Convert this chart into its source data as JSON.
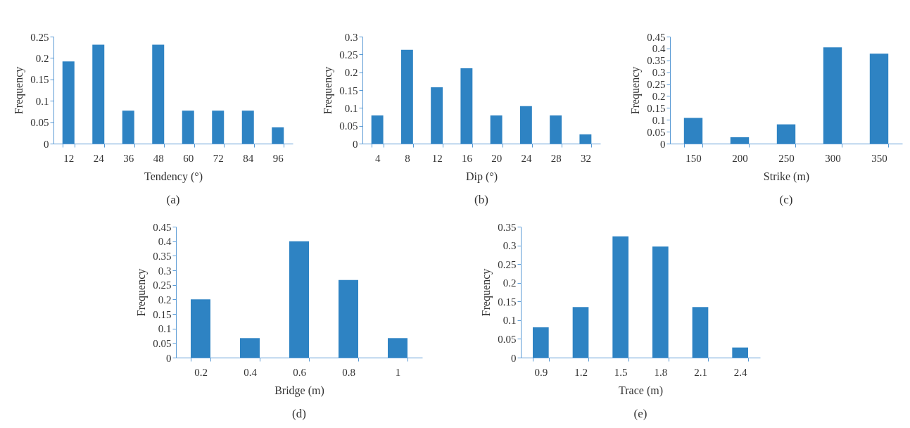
{
  "chart_data": [
    {
      "type": "bar",
      "xlabel": "Tendency (°)",
      "ylabel": "Frequency",
      "annotations": [
        "(a)"
      ],
      "categories": [
        "12",
        "24",
        "36",
        "48",
        "60",
        "72",
        "84",
        "96"
      ],
      "values": [
        0.192,
        0.231,
        0.077,
        0.231,
        0.077,
        0.077,
        0.077,
        0.038
      ],
      "color": "#2e83c3",
      "ylim": [
        0,
        0.25
      ],
      "yticks": [
        0,
        0.05,
        0.1,
        0.15,
        0.2,
        0.25
      ]
    },
    {
      "type": "bar",
      "xlabel": "Dip (°)",
      "ylabel": "Frequency",
      "annotations": [
        "(b)"
      ],
      "categories": [
        "4",
        "8",
        "12",
        "16",
        "20",
        "24",
        "28",
        "32"
      ],
      "values": [
        0.079,
        0.263,
        0.158,
        0.211,
        0.079,
        0.105,
        0.079,
        0.026
      ],
      "color": "#2e83c3",
      "ylim": [
        0,
        0.3
      ],
      "yticks": [
        0,
        0.05,
        0.1,
        0.15,
        0.2,
        0.25,
        0.3
      ]
    },
    {
      "type": "bar",
      "xlabel": "Strike (m)",
      "ylabel": "Frequency",
      "annotations": [
        "(c)"
      ],
      "categories": [
        "150",
        "200",
        "250",
        "300",
        "350"
      ],
      "values": [
        0.108,
        0.027,
        0.081,
        0.405,
        0.378
      ],
      "color": "#2e83c3",
      "ylim": [
        0,
        0.45
      ],
      "yticks": [
        0,
        0.05,
        0.1,
        0.15,
        0.2,
        0.25,
        0.3,
        0.35,
        0.4,
        0.45
      ]
    },
    {
      "type": "bar",
      "xlabel": "Bridge (m)",
      "ylabel": "Frequency",
      "annotations": [
        "(d)"
      ],
      "categories": [
        "0.2",
        "0.4",
        "0.6",
        "0.8",
        "1"
      ],
      "values": [
        0.2,
        0.067,
        0.4,
        0.267,
        0.067
      ],
      "color": "#2e83c3",
      "ylim": [
        0,
        0.45
      ],
      "yticks": [
        0,
        0.05,
        0.1,
        0.15,
        0.2,
        0.25,
        0.3,
        0.35,
        0.4,
        0.45
      ]
    },
    {
      "type": "bar",
      "xlabel": "Trace (m)",
      "ylabel": "Frequency",
      "annotations": [
        "(e)"
      ],
      "categories": [
        "0.9",
        "1.2",
        "1.5",
        "1.8",
        "2.1",
        "2.4"
      ],
      "values": [
        0.081,
        0.135,
        0.324,
        0.297,
        0.135,
        0.027
      ],
      "color": "#2e83c3",
      "ylim": [
        0,
        0.35
      ],
      "yticks": [
        0,
        0.05,
        0.1,
        0.15,
        0.2,
        0.25,
        0.3,
        0.35
      ]
    }
  ]
}
